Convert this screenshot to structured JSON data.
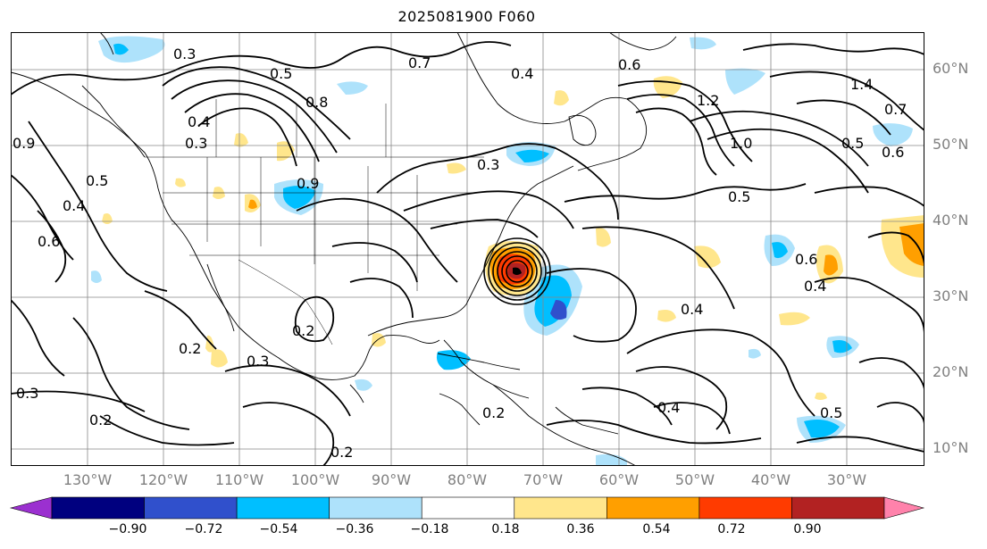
{
  "title": "2025081900 F060",
  "lat_labels": [
    "60°N",
    "50°N",
    "40°N",
    "30°N",
    "20°N",
    "10°N"
  ],
  "lon_labels": [
    "130°W",
    "120°W",
    "110°W",
    "100°W",
    "90°W",
    "80°W",
    "70°W",
    "60°W",
    "50°W",
    "40°W",
    "30°W"
  ],
  "colorbar": {
    "colors": [
      "#9b30d0",
      "#00007f",
      "#3050cc",
      "#00bfff",
      "#aee2fb",
      "#ffffff",
      "#ffe68c",
      "#ff9f00",
      "#ff3b00",
      "#b22222",
      "#ff82ab"
    ],
    "tick_labels": [
      "−0.90",
      "−0.72",
      "−0.54",
      "−0.36",
      "−0.18",
      "0.18",
      "0.36",
      "0.54",
      "0.72",
      "0.90"
    ]
  },
  "contour_labels": [
    "0.3",
    "0.5",
    "0.7",
    "0.4",
    "0.6",
    "0.8",
    "1.2",
    "1.4",
    "1.0",
    "0.5",
    "0.7",
    "0.6",
    "0.3",
    "0.5",
    "0.4",
    "0.6",
    "0.9",
    "0.5",
    "0.4",
    "0.3",
    "0.2",
    "0.3",
    "0.2",
    "0.4",
    "0.4",
    "0.2",
    "0.5",
    "0.2",
    "0.2",
    "0.6",
    "0.4",
    "0.3",
    "0.9"
  ]
}
